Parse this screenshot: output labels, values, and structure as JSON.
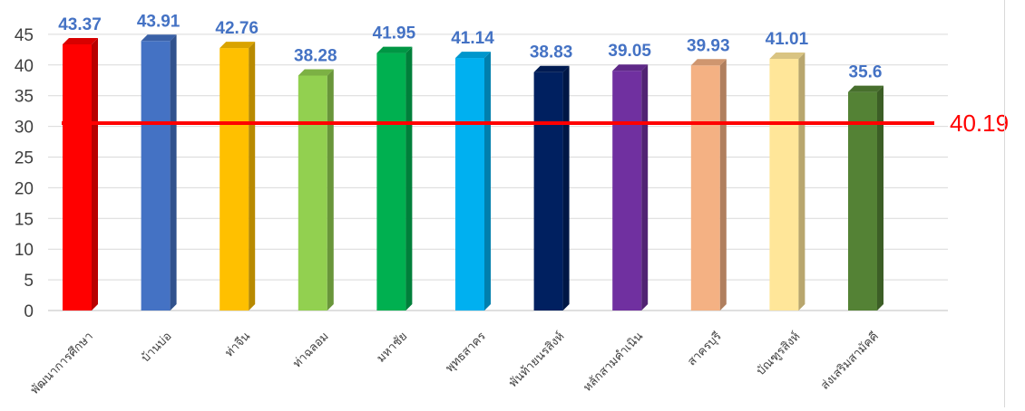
{
  "chart_data": {
    "type": "bar",
    "categories": [
      "พัฒนาการศึกษา",
      "บ้านบ่อ",
      "ท่าจีน",
      "ท่าฉลอม",
      "มหาชัย",
      "พุทธสาคร",
      "พันท้ายนรสิงห์",
      "หลักสามคำเนิน",
      "สาครบุรี",
      "บัณฑูรสิงห์",
      "ส่งเสริมสามัคคี"
    ],
    "values": [
      43.37,
      43.91,
      42.76,
      38.28,
      41.95,
      41.14,
      38.83,
      39.05,
      39.93,
      41.01,
      35.6
    ],
    "value_labels": [
      "43.37",
      "43.91",
      "42.76",
      "38.28",
      "41.95",
      "41.14",
      "38.83",
      "39.05",
      "39.93",
      "41.01",
      "35.6"
    ],
    "bar_colors": [
      "#ff0000",
      "#4472c4",
      "#ffc000",
      "#92d050",
      "#00b050",
      "#00b0f0",
      "#002060",
      "#7030a0",
      "#f4b183",
      "#ffe699",
      "#548235"
    ],
    "ylim": [
      0,
      45
    ],
    "y_ticks": [
      0,
      5,
      10,
      15,
      20,
      25,
      30,
      35,
      40,
      45
    ],
    "grid": true,
    "style": "3d-column",
    "data_label_color": "#4472c4",
    "reference_line": {
      "label": "40.19",
      "color": "#ff0000"
    }
  }
}
